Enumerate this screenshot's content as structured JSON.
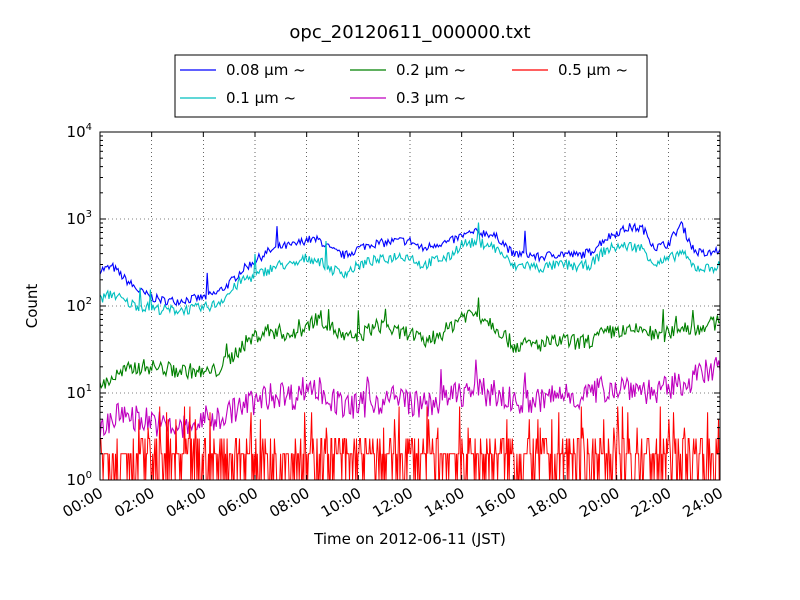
{
  "chart_data": {
    "type": "line",
    "title": "opc_20120611_000000.txt",
    "xlabel": "Time on 2012-06-11 (JST)",
    "ylabel": "Count",
    "y_scale": "log",
    "ylim": [
      1,
      10000
    ],
    "x_ticks": [
      "00:00",
      "02:00",
      "04:00",
      "06:00",
      "08:00",
      "10:00",
      "12:00",
      "14:00",
      "16:00",
      "18:00",
      "20:00",
      "22:00",
      "24:00"
    ],
    "y_ticks": [
      {
        "base": "10",
        "exp": "0"
      },
      {
        "base": "10",
        "exp": "1"
      },
      {
        "base": "10",
        "exp": "2"
      },
      {
        "base": "10",
        "exp": "3"
      },
      {
        "base": "10",
        "exp": "4"
      }
    ],
    "grid": true,
    "legend_placement": "top-center",
    "hours": [
      0,
      0.5,
      1,
      1.5,
      2,
      2.5,
      3,
      3.5,
      4,
      4.5,
      5,
      5.5,
      6,
      6.5,
      7,
      7.5,
      8,
      8.5,
      9,
      9.5,
      10,
      10.5,
      11,
      11.5,
      12,
      12.5,
      13,
      13.5,
      14,
      14.5,
      15,
      15.5,
      16,
      16.5,
      17,
      17.5,
      18,
      18.5,
      19,
      19.5,
      20,
      20.5,
      21,
      21.5,
      22,
      22.5,
      23,
      23.5,
      24
    ],
    "series": [
      {
        "name": "0.08 μm ~",
        "color": "#0000ff",
        "values": [
          260,
          280,
          200,
          150,
          125,
          115,
          115,
          120,
          125,
          140,
          180,
          260,
          330,
          420,
          480,
          500,
          580,
          570,
          430,
          380,
          460,
          520,
          530,
          560,
          560,
          450,
          520,
          540,
          640,
          700,
          690,
          580,
          390,
          400,
          360,
          390,
          400,
          380,
          420,
          580,
          700,
          800,
          780,
          470,
          520,
          880,
          430,
          390,
          450
        ]
      },
      {
        "name": "0.1 μm ~",
        "color": "#00bfbf",
        "values": [
          120,
          140,
          110,
          100,
          95,
          90,
          90,
          92,
          95,
          105,
          140,
          200,
          220,
          260,
          300,
          290,
          360,
          330,
          260,
          240,
          290,
          330,
          340,
          380,
          370,
          290,
          340,
          360,
          520,
          530,
          520,
          420,
          280,
          300,
          270,
          290,
          300,
          280,
          300,
          430,
          480,
          490,
          460,
          300,
          340,
          420,
          280,
          270,
          290
        ]
      },
      {
        "name": "0.2 μm ~",
        "color": "#008000",
        "values": [
          12,
          15,
          18,
          20,
          20,
          19,
          18,
          18,
          17,
          18,
          24,
          35,
          45,
          52,
          50,
          45,
          60,
          75,
          55,
          42,
          45,
          55,
          62,
          48,
          50,
          38,
          45,
          55,
          78,
          82,
          70,
          52,
          35,
          36,
          36,
          38,
          40,
          38,
          40,
          48,
          52,
          50,
          55,
          45,
          48,
          58,
          55,
          60,
          65
        ]
      },
      {
        "name": "0.3 μm ~",
        "color": "#bf00bf",
        "values": [
          4,
          5,
          6,
          5,
          5,
          4,
          4,
          4,
          5,
          5,
          6,
          7,
          8,
          9,
          10,
          9,
          12,
          11,
          8,
          7,
          7,
          8,
          8,
          9,
          8,
          7,
          8,
          9,
          10,
          11,
          10,
          9,
          8,
          8,
          8,
          9,
          10,
          9,
          10,
          11,
          12,
          12,
          11,
          10,
          11,
          13,
          15,
          17,
          18
        ]
      },
      {
        "name": "0.5 μm ~",
        "color": "#ff0000",
        "values": [
          2,
          2,
          2,
          2,
          2,
          2,
          2,
          2,
          2,
          2,
          2,
          2,
          2,
          2,
          2,
          2,
          2,
          2,
          2,
          2,
          2,
          2,
          2,
          2,
          2,
          2,
          2,
          2,
          2,
          2,
          2,
          2,
          2,
          2,
          2,
          2,
          2,
          2,
          2,
          2,
          2,
          2,
          2,
          2,
          2,
          2,
          2,
          2,
          2
        ]
      }
    ]
  }
}
